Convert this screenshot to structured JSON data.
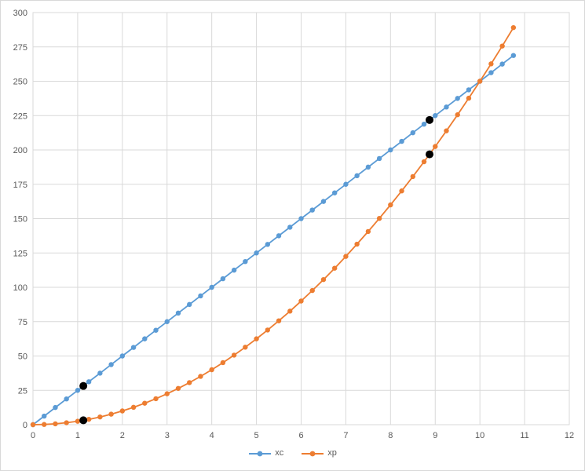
{
  "chart_data": {
    "type": "line",
    "title": "",
    "xlabel": "",
    "ylabel": "",
    "xlim": [
      0,
      12
    ],
    "ylim": [
      0,
      300
    ],
    "x_ticks": [
      0,
      1,
      2,
      3,
      4,
      5,
      6,
      7,
      8,
      9,
      10,
      11,
      12
    ],
    "y_ticks": [
      0,
      25,
      50,
      75,
      100,
      125,
      150,
      175,
      200,
      225,
      250,
      275,
      300
    ],
    "grid": true,
    "gridline_color": "#d9d9d9",
    "plot_border_color": "#d9d9d9",
    "axis_label_color": "#595959",
    "x": [
      0,
      0.25,
      0.5,
      0.75,
      1,
      1.25,
      1.5,
      1.75,
      2,
      2.25,
      2.5,
      2.75,
      3,
      3.25,
      3.5,
      3.75,
      4,
      4.25,
      4.5,
      4.75,
      5,
      5.25,
      5.5,
      5.75,
      6,
      6.25,
      6.5,
      6.75,
      7,
      7.25,
      7.5,
      7.75,
      8,
      8.25,
      8.5,
      8.75,
      9,
      9.25,
      9.5,
      9.75,
      10,
      10.25,
      10.5,
      10.75
    ],
    "series": [
      {
        "name": "xc",
        "color": "#5b9bd5",
        "values": [
          0,
          6.25,
          12.5,
          18.75,
          25,
          31.25,
          37.5,
          43.75,
          50,
          56.25,
          62.5,
          68.75,
          75,
          81.25,
          87.5,
          93.75,
          100,
          106.25,
          112.5,
          118.75,
          125,
          131.25,
          137.5,
          143.75,
          150,
          156.25,
          162.5,
          168.75,
          175,
          181.25,
          187.5,
          193.75,
          200,
          206.25,
          212.5,
          218.75,
          225,
          231.25,
          237.5,
          243.75,
          250,
          256.25,
          262.5,
          268.75
        ]
      },
      {
        "name": "xp",
        "color": "#ed7d31",
        "values": [
          0,
          0.156,
          0.625,
          1.406,
          2.5,
          3.906,
          5.625,
          7.656,
          10,
          12.656,
          15.625,
          18.906,
          22.5,
          26.406,
          30.625,
          35.156,
          40,
          45.156,
          50.625,
          56.406,
          62.5,
          68.906,
          75.625,
          82.656,
          90,
          97.656,
          105.625,
          113.906,
          122.5,
          131.406,
          140.625,
          150.156,
          160,
          170.156,
          180.625,
          191.406,
          202.5,
          213.906,
          225.625,
          237.656,
          250,
          262.656,
          275.625,
          289.063
        ]
      }
    ],
    "highlight_points": {
      "color": "#000000",
      "points": [
        {
          "x": 1.127,
          "y": 28.18
        },
        {
          "x": 1.127,
          "y": 3.18
        },
        {
          "x": 8.873,
          "y": 221.82
        },
        {
          "x": 8.873,
          "y": 196.82
        }
      ]
    },
    "legend": {
      "position": "bottom",
      "entries": [
        {
          "label": "xc",
          "color": "#5b9bd5"
        },
        {
          "label": "xp",
          "color": "#ed7d31"
        }
      ]
    }
  }
}
